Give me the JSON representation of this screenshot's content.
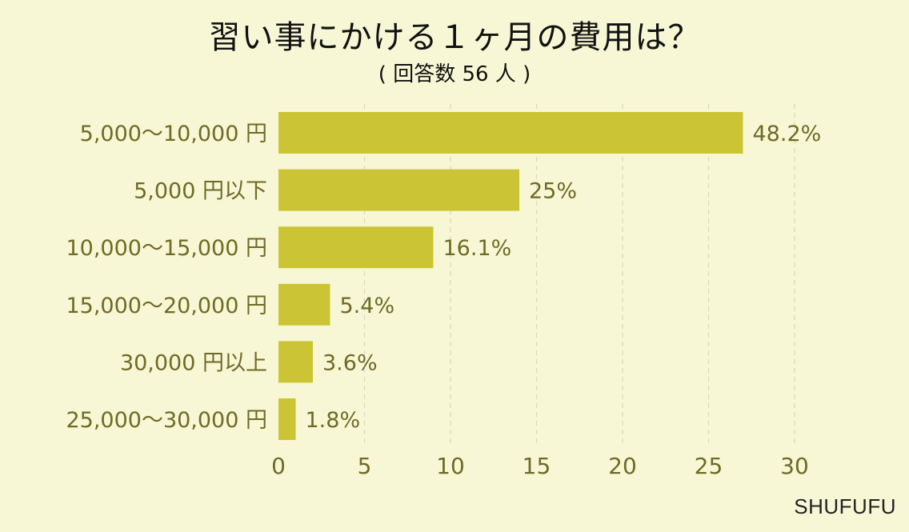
{
  "title": "習い事にかける１ヶ月の費用は？",
  "subtitle": "( 回答数 56 人 )",
  "watermark": "SHUFUFU",
  "chart_data": {
    "type": "bar",
    "orientation": "horizontal",
    "categories": [
      "5,000～10,000 円",
      "5,000 円以下",
      "10,000～15,000 円",
      "15,000～20,000 円",
      "30,000 円以上",
      "25,000～30,000 円"
    ],
    "values": [
      27,
      14,
      9,
      3,
      2,
      1
    ],
    "value_labels": [
      "48.2%",
      "25%",
      "16.1%",
      "5.4%",
      "3.6%",
      "1.8%"
    ],
    "x_ticks": [
      0,
      5,
      10,
      15,
      20,
      25,
      30
    ],
    "xlim": [
      0,
      30
    ],
    "grid": "vertical dashed",
    "bar_color": "#cbc535",
    "label_color": "#6f6a24",
    "grid_color": "#d9d8c4"
  }
}
